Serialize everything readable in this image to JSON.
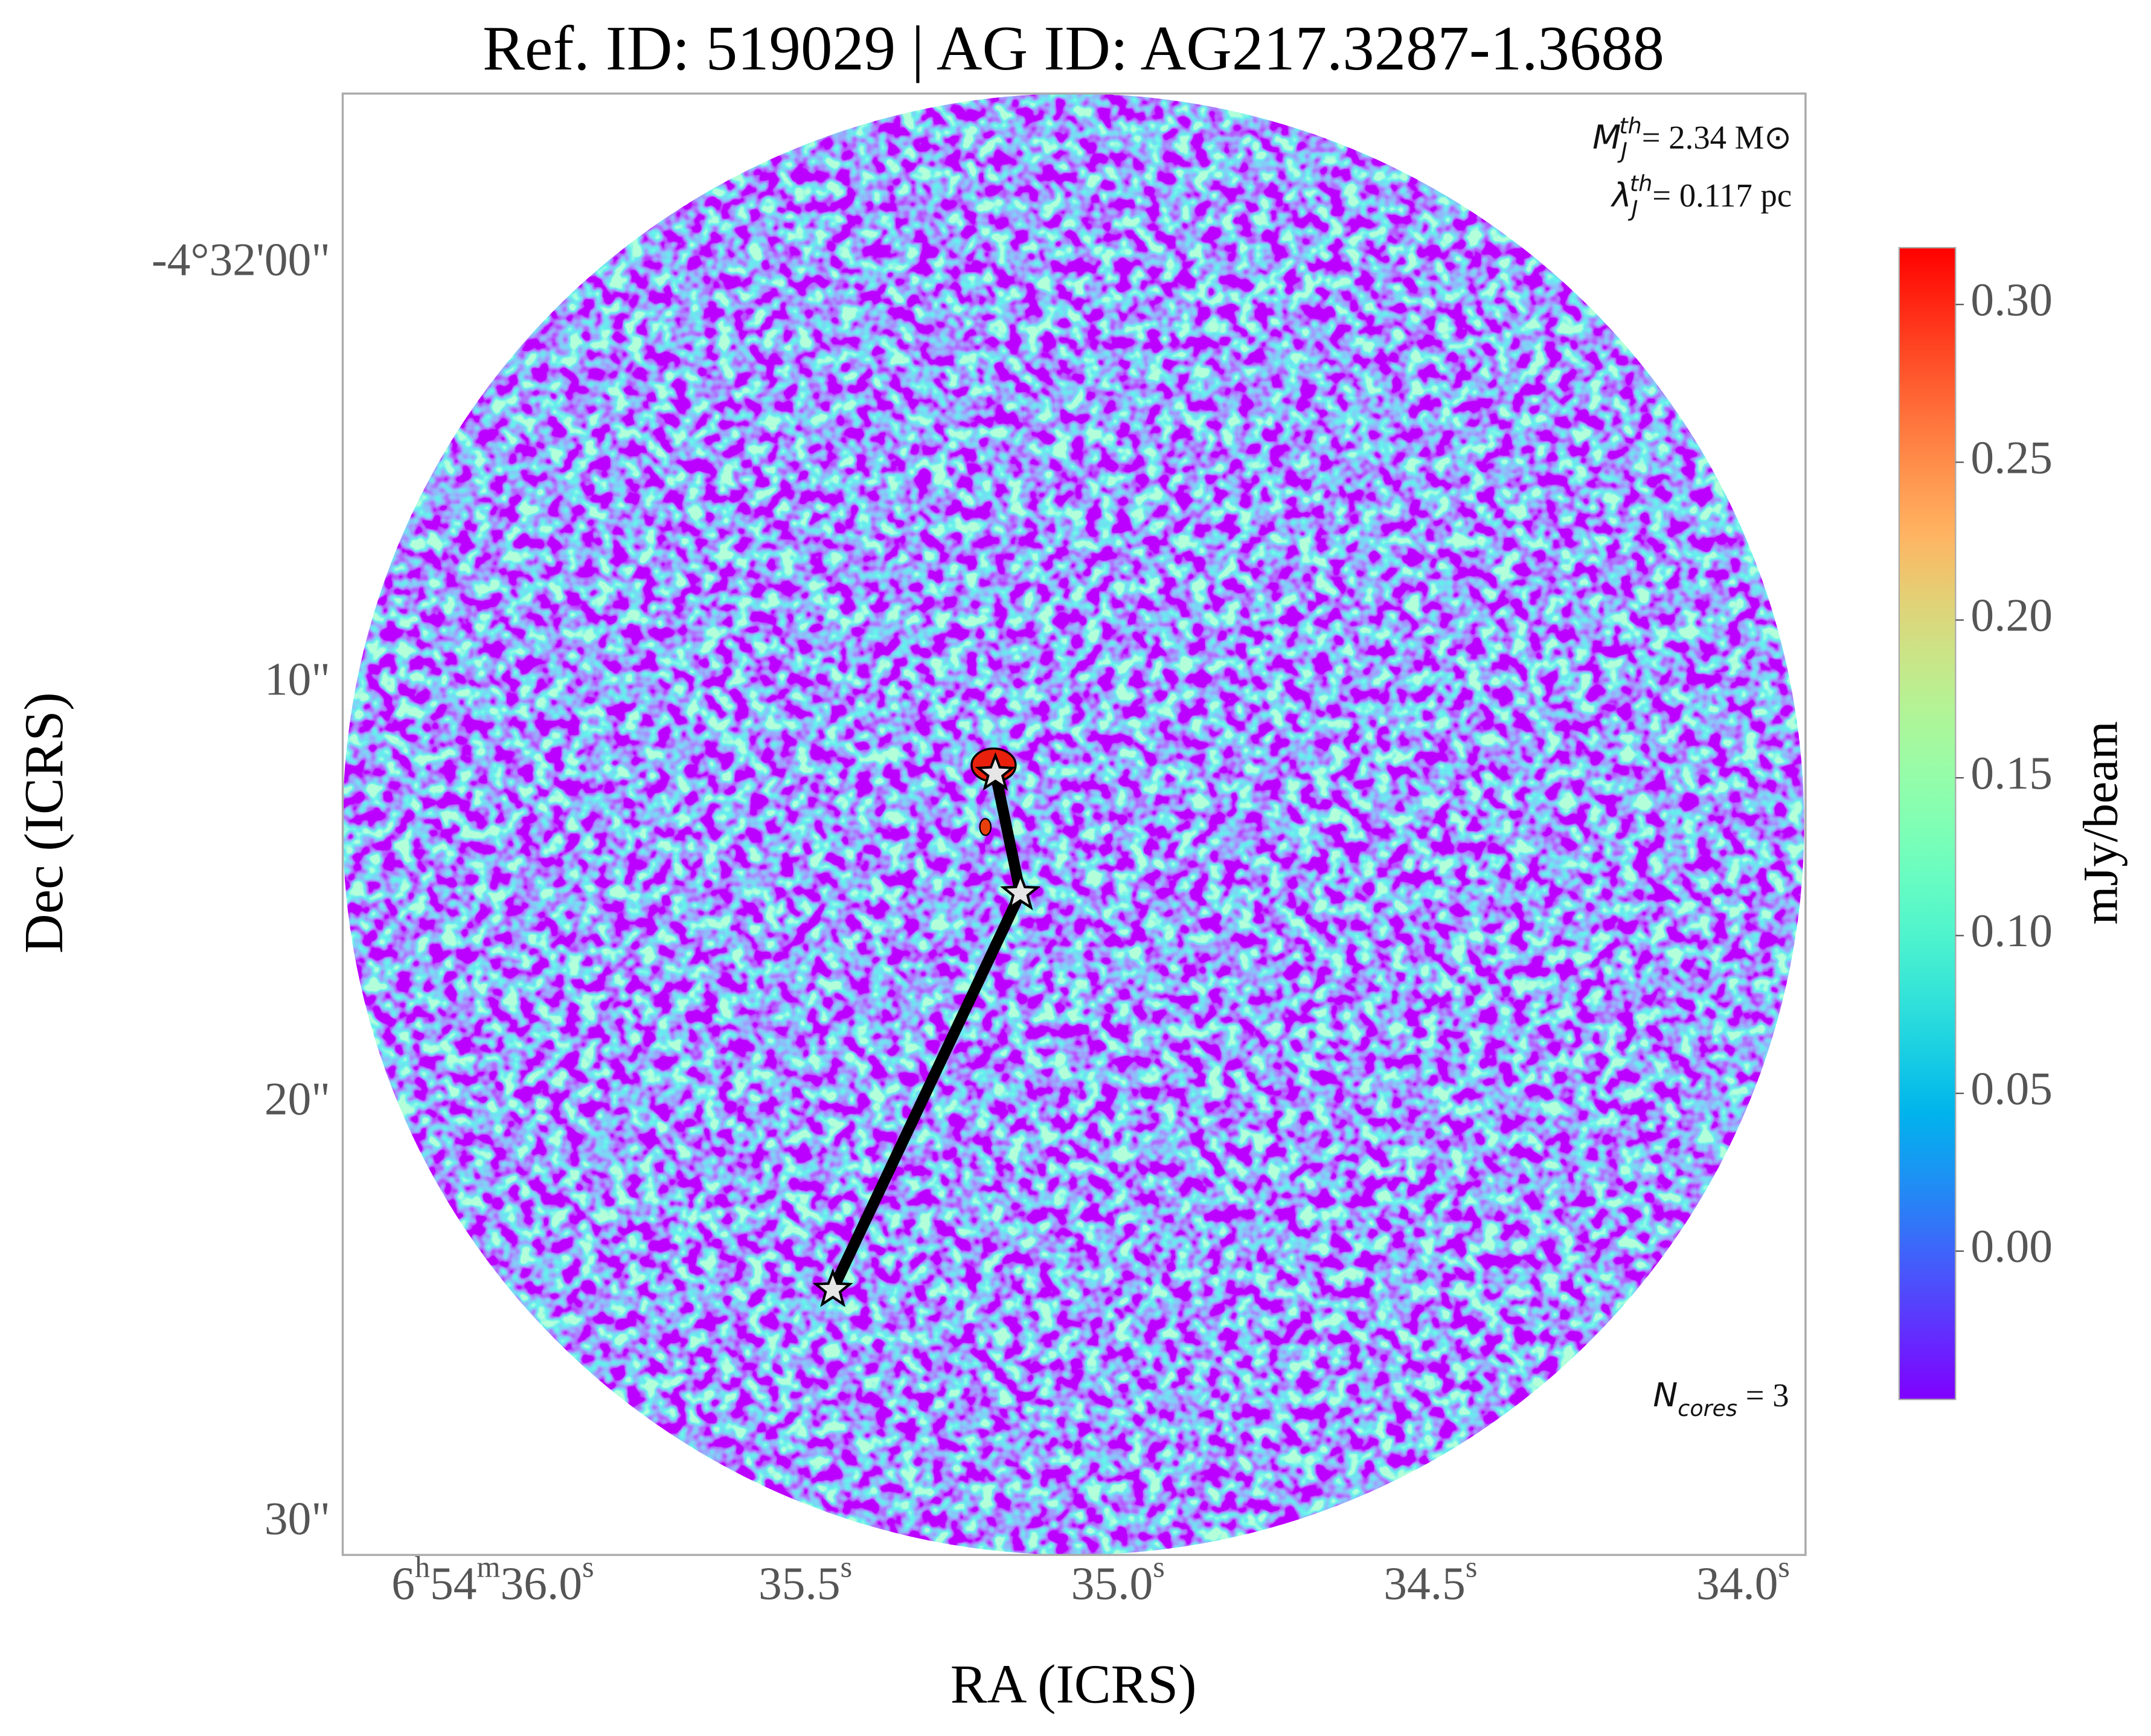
{
  "chart_data": {
    "type": "skymap",
    "title": "Ref. ID: 519029 | AG ID: AG217.3287-1.3688",
    "x_label": "RA (ICRS)",
    "y_label": "Dec (ICRS)",
    "colorbar_label": "mJy/beam",
    "colormap": "rainbow",
    "xlim": [
      36.24,
      33.9
    ],
    "xticks": [
      {
        "value": 36.0,
        "label": "6h54m36.0s"
      },
      {
        "value": 35.5,
        "label": "35.5s"
      },
      {
        "value": 35.0,
        "label": "35.0s"
      },
      {
        "value": 34.5,
        "label": "34.5s"
      },
      {
        "value": 34.0,
        "label": "34.0s"
      }
    ],
    "ylim": [
      30.75,
      -4.07
    ],
    "yticks": [
      {
        "value": 0,
        "label": "-4°32'00\""
      },
      {
        "value": 10,
        "label": "10\""
      },
      {
        "value": 20,
        "label": "20\""
      },
      {
        "value": 30,
        "label": "30\""
      }
    ],
    "clim": [
      -0.047,
      0.318
    ],
    "cticks": [
      {
        "value": 0,
        "label": "0.00"
      },
      {
        "value": 0.05,
        "label": "0.05"
      },
      {
        "value": 0.1,
        "label": "0.10"
      },
      {
        "value": 0.15,
        "label": "0.15"
      },
      {
        "value": 0.2,
        "label": "0.20"
      },
      {
        "value": 0.25,
        "label": "0.25"
      },
      {
        "value": 0.3,
        "label": "0.30"
      }
    ],
    "x": [
      35.196,
      35.156,
      35.456
    ],
    "y": [
      12.13,
      14.98,
      24.43
    ],
    "annotations": {
      "jeans_mass": {
        "symbol": "M",
        "sub": "J",
        "sup": "th",
        "text": "= 2.34 M⊙"
      },
      "jeans_length": {
        "symbol": "λ",
        "sub": "J",
        "sup": "th",
        "text": "= 0.117 pc"
      },
      "cores": {
        "symbol": "N",
        "sub": "cores",
        "text": " = 3"
      }
    }
  }
}
